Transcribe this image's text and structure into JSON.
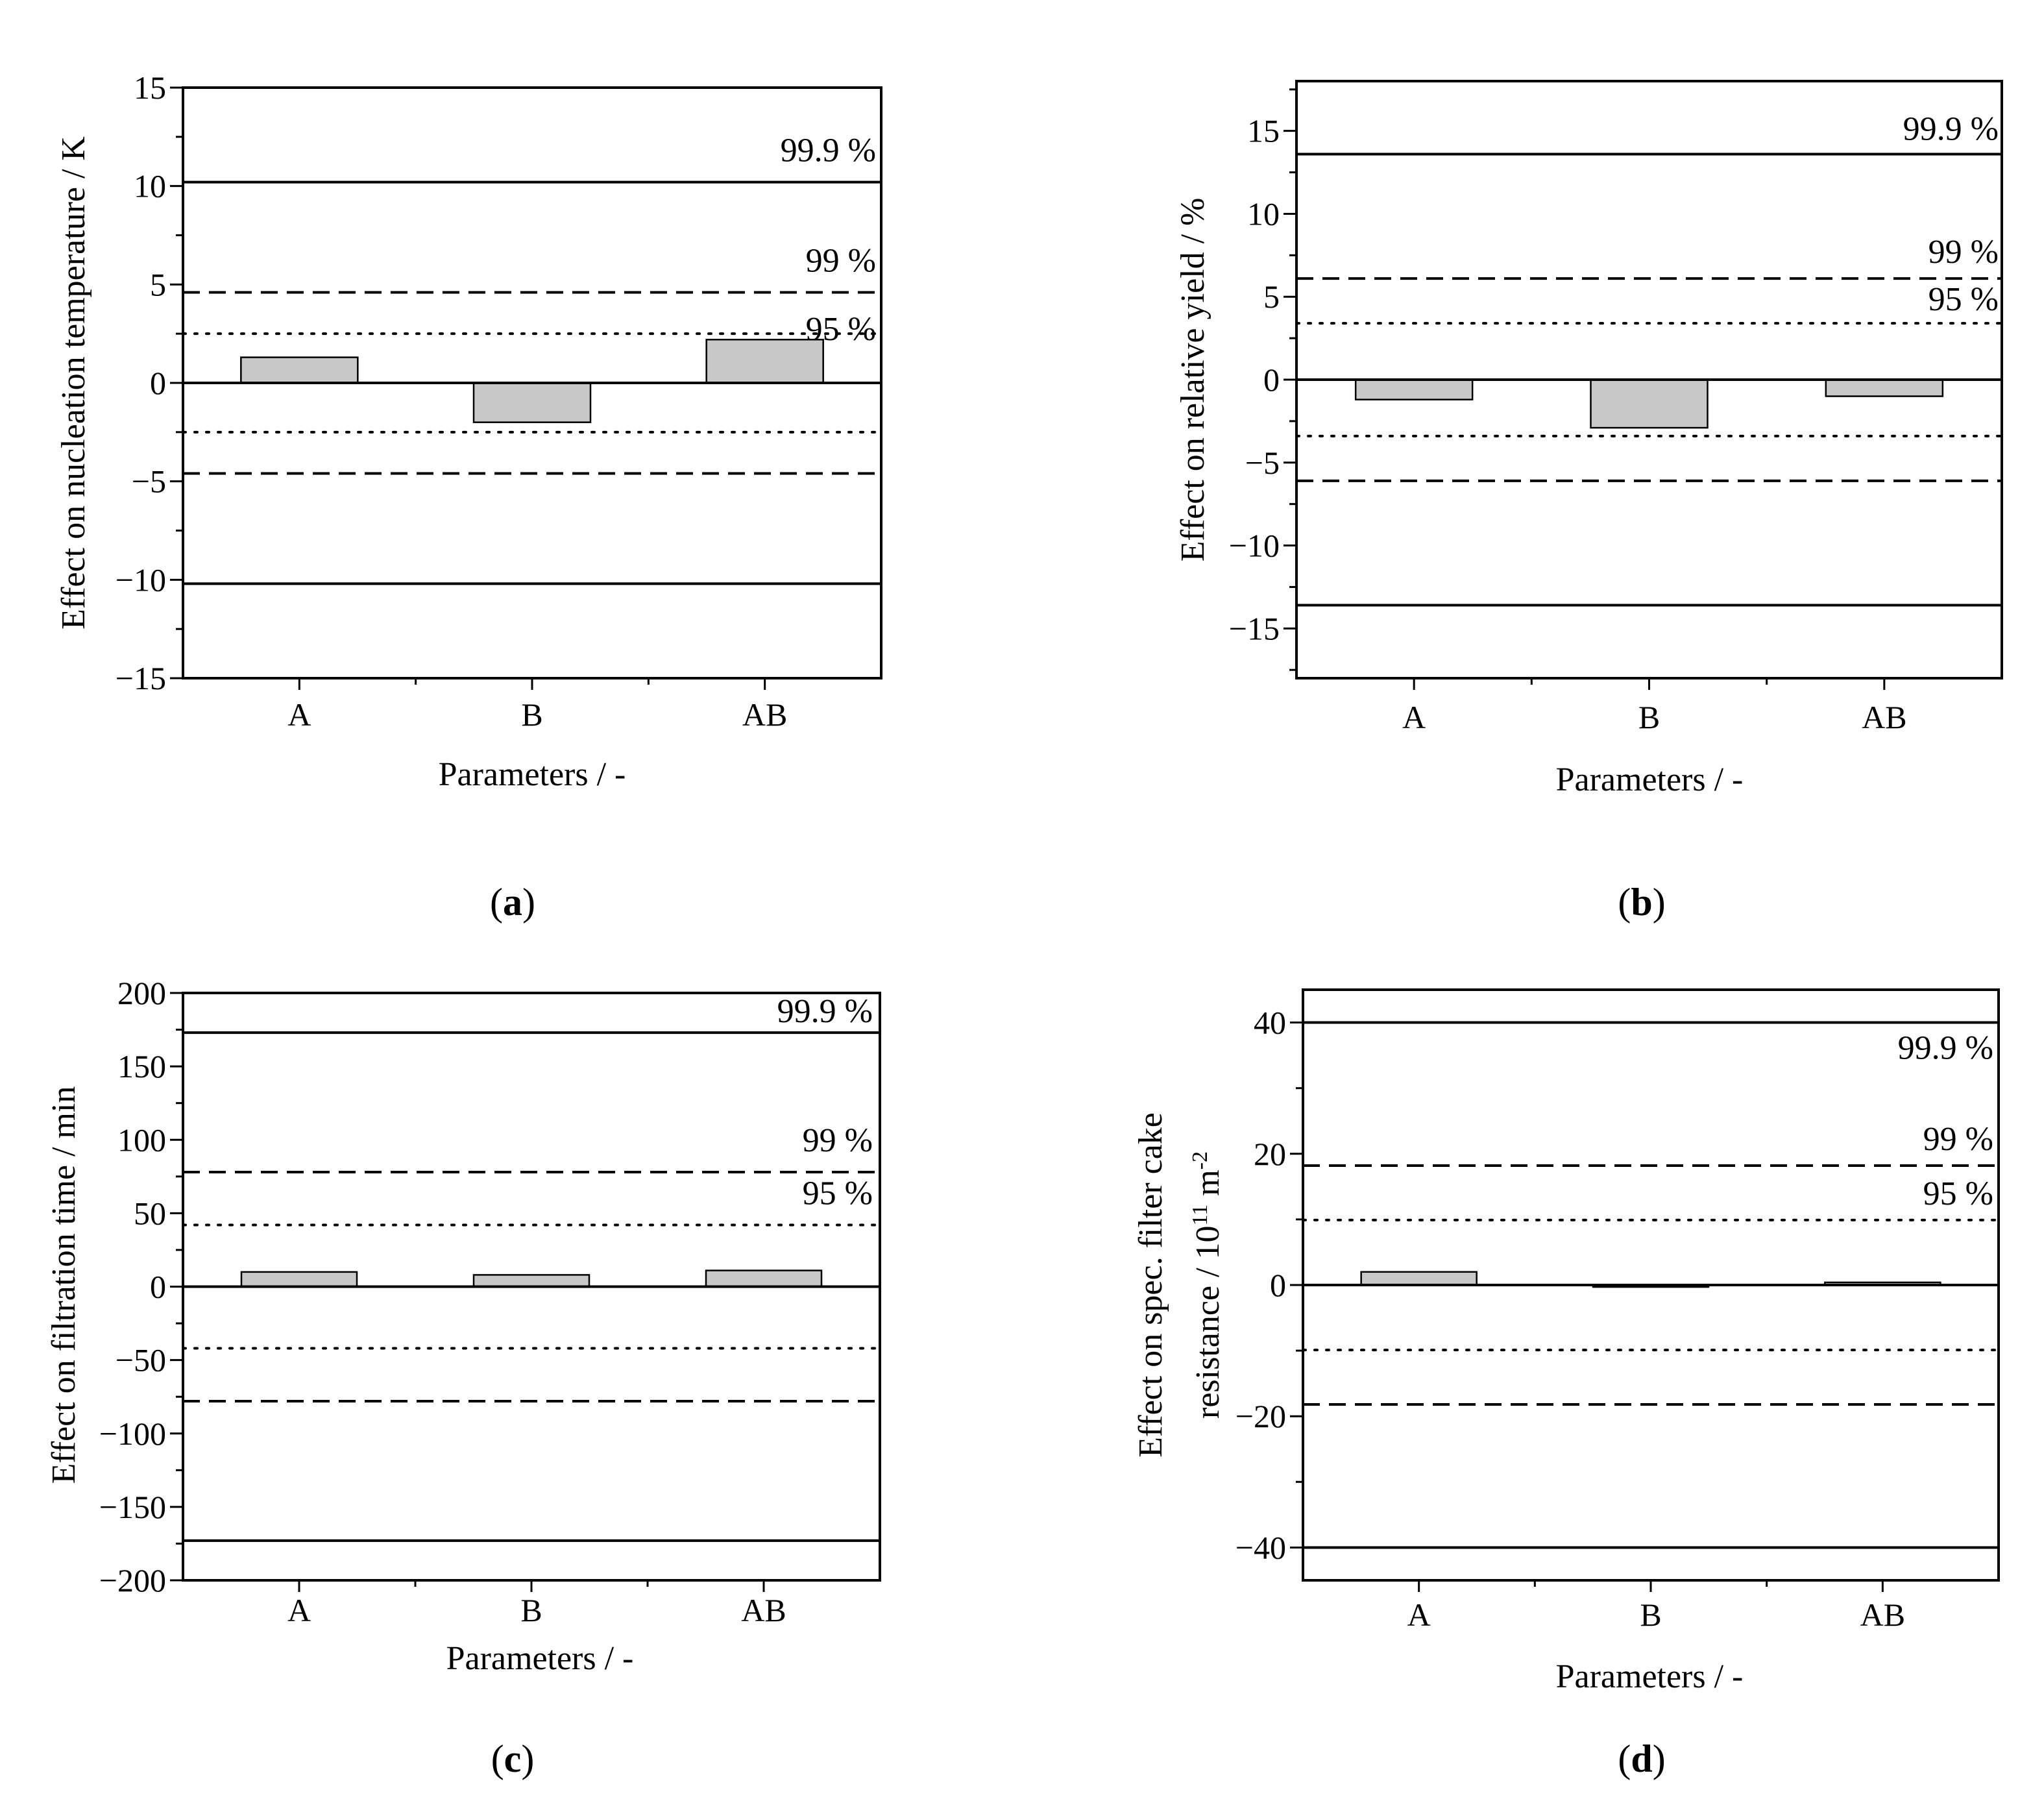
{
  "figure": {
    "background": "#ffffff",
    "bar_fill": "#c8c8c8",
    "line_color": "#000000"
  },
  "chart_data": [
    {
      "panel": "a",
      "type": "bar",
      "categories": [
        "A",
        "B",
        "AB"
      ],
      "values": [
        1.3,
        -2.0,
        2.2
      ],
      "xlabel": "Parameters / -",
      "ylabel": "Effect on nucleation temperature / K",
      "ylim": [
        -15,
        15
      ],
      "yticks": [
        -15,
        -10,
        -5,
        0,
        5,
        10,
        15
      ],
      "ytick_labels": [
        "−15",
        "−10",
        "−5",
        "0",
        "5",
        "10",
        "15"
      ],
      "minor_yticks": [
        -12.5,
        -7.5,
        -2.5,
        2.5,
        7.5,
        12.5
      ],
      "significance_levels": [
        {
          "label": "99.9 %",
          "value": 10.2,
          "style": "solid"
        },
        {
          "label": "99 %",
          "value": 4.6,
          "style": "dashed"
        },
        {
          "label": "95 %",
          "value": 2.5,
          "style": "dotted"
        }
      ],
      "grid": false
    },
    {
      "panel": "b",
      "type": "bar",
      "categories": [
        "A",
        "B",
        "AB"
      ],
      "values": [
        -1.2,
        -2.9,
        -1.0
      ],
      "xlabel": "Parameters / -",
      "ylabel": "Effect on relative yield / %",
      "ylim": [
        -18,
        18
      ],
      "yticks": [
        -15,
        -10,
        -5,
        0,
        5,
        10,
        15
      ],
      "ytick_labels": [
        "−15",
        "−10",
        "−5",
        "0",
        "5",
        "10",
        "15"
      ],
      "minor_yticks": [
        -17.5,
        -12.5,
        -7.5,
        -2.5,
        2.5,
        7.5,
        12.5,
        17.5
      ],
      "significance_levels": [
        {
          "label": "99.9 %",
          "value": 13.6,
          "style": "solid"
        },
        {
          "label": "99 %",
          "value": 6.1,
          "style": "dashed"
        },
        {
          "label": "95 %",
          "value": 3.4,
          "style": "dotted"
        }
      ],
      "grid": false
    },
    {
      "panel": "c",
      "type": "bar",
      "categories": [
        "A",
        "B",
        "AB"
      ],
      "values": [
        10,
        8,
        11
      ],
      "xlabel": "Parameters / -",
      "ylabel": "Effect on filtration time / min",
      "ylim": [
        -200,
        200
      ],
      "yticks": [
        -200,
        -150,
        -100,
        -50,
        0,
        50,
        100,
        150,
        200
      ],
      "ytick_labels": [
        "−200",
        "−150",
        "−100",
        "−50",
        "0",
        "50",
        "100",
        "150",
        "200"
      ],
      "minor_yticks": [
        -175,
        -125,
        -75,
        -25,
        25,
        75,
        125,
        175
      ],
      "significance_levels": [
        {
          "label": "99.9 %",
          "value": 173,
          "style": "solid"
        },
        {
          "label": "99 %",
          "value": 78,
          "style": "dashed"
        },
        {
          "label": "95 %",
          "value": 42,
          "style": "dotted"
        }
      ],
      "grid": false
    },
    {
      "panel": "d",
      "type": "bar",
      "categories": [
        "A",
        "B",
        "AB"
      ],
      "values": [
        2.0,
        -0.3,
        0.4
      ],
      "xlabel": "Parameters / -",
      "ylabel_line1": "Effect on spec. filter cake",
      "ylabel_line2_prefix": "resistance / 10",
      "ylabel_sup1": "11",
      "ylabel_mid": " m",
      "ylabel_sup2": "-2",
      "ylim": [
        -45,
        45
      ],
      "yticks": [
        -40,
        -20,
        0,
        20,
        40
      ],
      "ytick_labels": [
        "−40",
        "−20",
        "0",
        "20",
        "40"
      ],
      "minor_yticks": [
        -30,
        -10,
        10,
        30
      ],
      "significance_levels": [
        {
          "label": "99.9 %",
          "value": 40,
          "style": "solid"
        },
        {
          "label": "99 %",
          "value": 18.2,
          "style": "dashed"
        },
        {
          "label": "95 %",
          "value": 9.9,
          "style": "dotted"
        }
      ],
      "grid": false
    }
  ],
  "panel_labels": [
    {
      "open": "(",
      "letter": "a",
      "close": ")"
    },
    {
      "open": "(",
      "letter": "b",
      "close": ")"
    },
    {
      "open": "(",
      "letter": "c",
      "close": ")"
    },
    {
      "open": "(",
      "letter": "d",
      "close": ")"
    }
  ]
}
